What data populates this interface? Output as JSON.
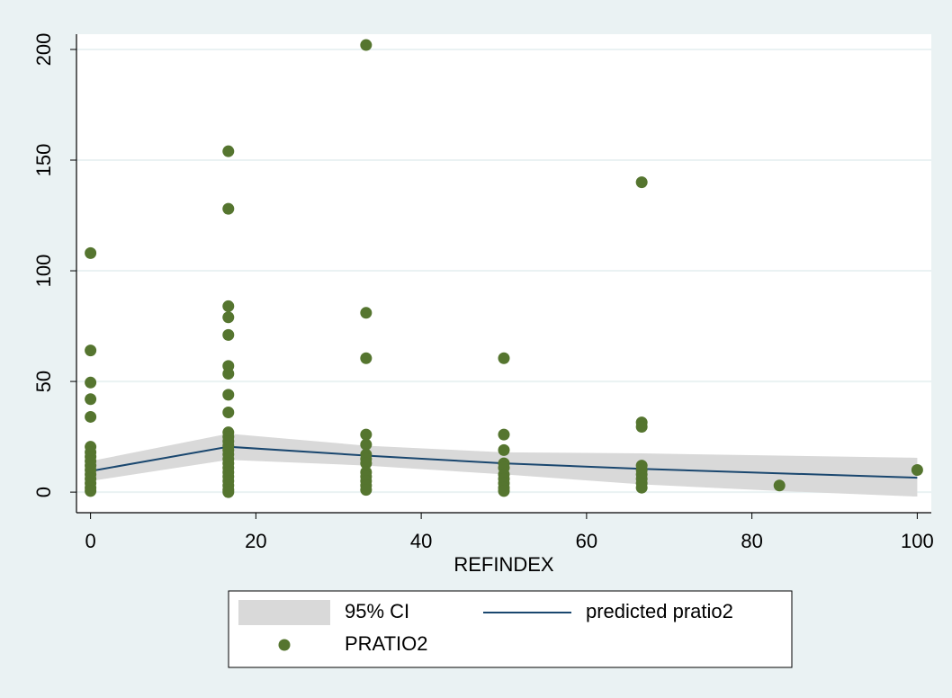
{
  "chart_data": {
    "type": "scatter",
    "x_label": "REFINDEX",
    "xlim": [
      -1.7,
      101.7
    ],
    "xticks": [
      0,
      20,
      40,
      60,
      80,
      100
    ],
    "ylim": [
      -9.3,
      206.9
    ],
    "yticks": [
      0,
      50,
      100,
      150,
      200
    ],
    "grid": true,
    "legend": "bottom",
    "series": [
      {
        "name": "95% CI",
        "type": "area",
        "color": "#d9d9d9",
        "x": [
          0,
          16.67,
          33.33,
          50,
          66.67,
          83.33,
          100
        ],
        "lower": [
          5,
          14.6,
          12,
          8,
          3.5,
          0.5,
          -2
        ],
        "upper": [
          14,
          26.4,
          21,
          18,
          17.5,
          16.5,
          15.5
        ]
      },
      {
        "name": "predicted pratio2",
        "type": "line",
        "color": "#1a476f",
        "x": [
          0,
          16.67,
          33.33,
          50,
          66.67,
          83.33,
          100
        ],
        "values": [
          9.5,
          20.5,
          16.5,
          13,
          10.5,
          8.5,
          6.5
        ]
      },
      {
        "name": "PRATIO2",
        "type": "scatter",
        "color": "#55752f",
        "x": [
          0,
          0,
          0,
          0,
          0,
          0,
          0,
          0,
          0,
          0,
          0,
          0,
          0,
          0,
          0,
          0,
          16.67,
          16.67,
          16.67,
          16.67,
          16.67,
          16.67,
          16.67,
          16.67,
          16.67,
          16.67,
          16.67,
          16.67,
          16.67,
          16.67,
          16.67,
          16.67,
          16.67,
          16.67,
          16.67,
          16.67,
          16.67,
          16.67,
          16.67,
          16.67,
          33.33,
          33.33,
          33.33,
          33.33,
          33.33,
          33.33,
          33.33,
          33.33,
          33.33,
          33.33,
          33.33,
          33.33,
          33.33,
          50,
          50,
          50,
          50,
          50,
          50,
          50,
          50,
          50,
          50,
          66.67,
          66.67,
          66.67,
          66.67,
          66.67,
          66.67,
          66.67,
          66.67,
          66.67,
          83.33,
          100
        ],
        "values": [
          108,
          64,
          49.5,
          42,
          34,
          20.5,
          18,
          16,
          14,
          12,
          10,
          8,
          6,
          4,
          2,
          0.5,
          154,
          128,
          84,
          79,
          71,
          57,
          53.5,
          44,
          36,
          27,
          25,
          23,
          21,
          19,
          17,
          15,
          13,
          11,
          9,
          7,
          5,
          3,
          1,
          0,
          202,
          81,
          60.5,
          26,
          21.5,
          17,
          15,
          13,
          9,
          7,
          5,
          3,
          1,
          60.5,
          26,
          19,
          13,
          11,
          8,
          6,
          4,
          2,
          0.5,
          140,
          31.5,
          29.5,
          12,
          10,
          8,
          6,
          4,
          2,
          3,
          10
        ]
      }
    ]
  }
}
